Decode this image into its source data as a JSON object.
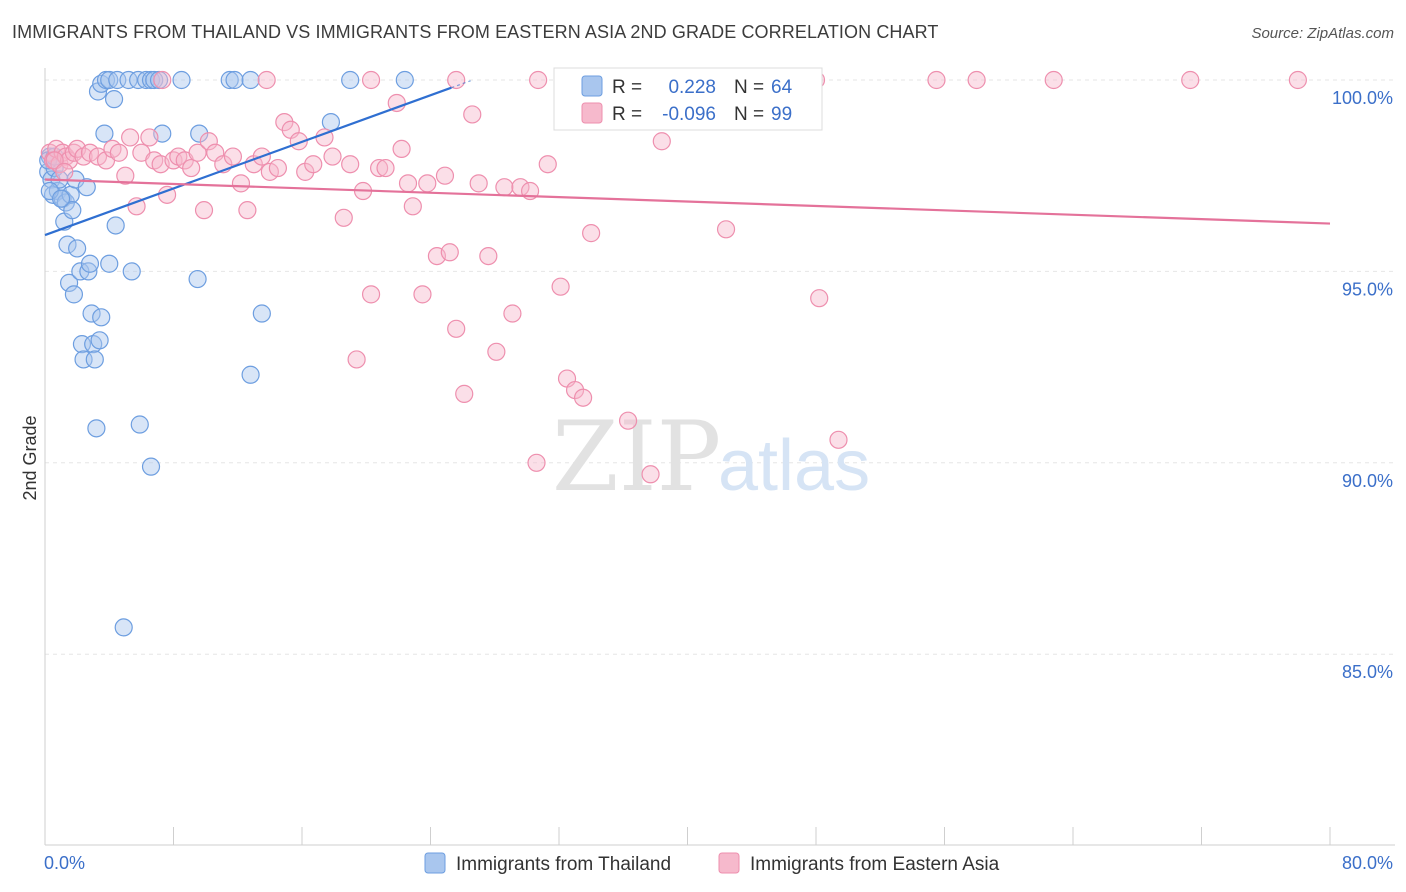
{
  "title": "IMMIGRANTS FROM THAILAND VS IMMIGRANTS FROM EASTERN ASIA 2ND GRADE CORRELATION CHART",
  "source": "Source: ZipAtlas.com",
  "watermark": {
    "zip": "ZIP",
    "atlas": "atlas"
  },
  "colors": {
    "blue_fill": "#a9c6ee",
    "blue_stroke": "#6d9ee0",
    "blue_line": "#2f6fd1",
    "pink_fill": "#f6b9cc",
    "pink_stroke": "#ee8fae",
    "pink_line": "#e4729a",
    "grid": "#e6e6e6",
    "axis_text": "#3b6fc9"
  },
  "legend": {
    "rows": [
      {
        "r_label": "R =",
        "r_value": "0.228",
        "n_label": "N =",
        "n_value": "64"
      },
      {
        "r_label": "R =",
        "r_value": "-0.096",
        "n_label": "N =",
        "n_value": "99"
      }
    ]
  },
  "chart_data": {
    "type": "scatter",
    "title": "IMMIGRANTS FROM THAILAND VS IMMIGRANTS FROM EASTERN ASIA 2ND GRADE CORRELATION CHART",
    "xlabel": "",
    "ylabel": "2nd Grade",
    "xlim": [
      0,
      80
    ],
    "ylim": [
      80.5,
      101
    ],
    "x_tick_labels": [
      "0.0%",
      "80.0%"
    ],
    "y_ticks": [
      100,
      95,
      90,
      85
    ],
    "y_tick_labels": [
      "100.0%",
      "95.0%",
      "90.0%",
      "85.0%"
    ],
    "grid": true,
    "legend_position": "top-center",
    "series": [
      {
        "name": "Immigrants from Thailand",
        "color": "blue",
        "trend": {
          "x": [
            0,
            25.3
          ],
          "y": [
            95.95,
            99.8
          ]
        },
        "points": [
          [
            0.2,
            97.6
          ],
          [
            0.3,
            98.0
          ],
          [
            0.4,
            97.4
          ],
          [
            0.5,
            97.0
          ],
          [
            0.6,
            97.7
          ],
          [
            0.8,
            97.1
          ],
          [
            0.9,
            97.4
          ],
          [
            1.1,
            96.9
          ],
          [
            1.2,
            96.3
          ],
          [
            1.3,
            96.8
          ],
          [
            1.4,
            95.7
          ],
          [
            1.5,
            94.7
          ],
          [
            1.6,
            97.0
          ],
          [
            1.7,
            96.6
          ],
          [
            1.8,
            94.4
          ],
          [
            1.9,
            97.4
          ],
          [
            2.0,
            95.6
          ],
          [
            2.2,
            95.0
          ],
          [
            2.3,
            93.1
          ],
          [
            2.4,
            92.7
          ],
          [
            2.6,
            97.2
          ],
          [
            2.7,
            95.0
          ],
          [
            2.8,
            95.2
          ],
          [
            2.9,
            93.9
          ],
          [
            3.0,
            93.1
          ],
          [
            3.1,
            92.7
          ],
          [
            3.2,
            90.9
          ],
          [
            3.4,
            93.2
          ],
          [
            3.5,
            93.8
          ],
          [
            3.7,
            98.6
          ],
          [
            4.0,
            95.2
          ],
          [
            4.4,
            96.2
          ],
          [
            5.4,
            95.0
          ],
          [
            5.9,
            91.0
          ],
          [
            6.6,
            89.9
          ],
          [
            7.3,
            98.6
          ],
          [
            9.5,
            94.8
          ],
          [
            9.6,
            98.6
          ],
          [
            12.8,
            92.3
          ],
          [
            13.5,
            93.9
          ],
          [
            17.8,
            98.9
          ],
          [
            3.3,
            99.7
          ],
          [
            3.5,
            99.9
          ],
          [
            3.8,
            100.0
          ],
          [
            4.0,
            100.0
          ],
          [
            4.3,
            99.5
          ],
          [
            4.5,
            100.0
          ],
          [
            5.2,
            100.0
          ],
          [
            5.8,
            100.0
          ],
          [
            6.3,
            100.0
          ],
          [
            6.6,
            100.0
          ],
          [
            6.8,
            100.0
          ],
          [
            7.1,
            100.0
          ],
          [
            8.5,
            100.0
          ],
          [
            11.5,
            100.0
          ],
          [
            11.8,
            100.0
          ],
          [
            12.8,
            100.0
          ],
          [
            19.0,
            100.0
          ],
          [
            22.4,
            100.0
          ],
          [
            4.9,
            85.7
          ],
          [
            0.2,
            97.9
          ],
          [
            0.3,
            97.1
          ],
          [
            1.0,
            96.9
          ],
          [
            0.6,
            98.0
          ]
        ]
      },
      {
        "name": "Immigrants from Eastern Asia",
        "color": "pink",
        "trend": {
          "x": [
            0,
            80
          ],
          "y": [
            97.4,
            96.25
          ]
        },
        "points": [
          [
            0.3,
            98.1
          ],
          [
            0.5,
            97.9
          ],
          [
            0.7,
            98.2
          ],
          [
            0.9,
            97.8
          ],
          [
            1.1,
            98.1
          ],
          [
            1.3,
            98.0
          ],
          [
            1.5,
            97.9
          ],
          [
            1.8,
            98.1
          ],
          [
            2.0,
            98.2
          ],
          [
            2.4,
            98.0
          ],
          [
            2.8,
            98.1
          ],
          [
            3.3,
            98.0
          ],
          [
            3.8,
            97.9
          ],
          [
            4.2,
            98.2
          ],
          [
            4.6,
            98.1
          ],
          [
            5.0,
            97.5
          ],
          [
            5.3,
            98.5
          ],
          [
            5.7,
            96.7
          ],
          [
            6.0,
            98.1
          ],
          [
            6.5,
            98.5
          ],
          [
            6.8,
            97.9
          ],
          [
            7.2,
            97.8
          ],
          [
            7.6,
            97.0
          ],
          [
            8.0,
            97.9
          ],
          [
            8.3,
            98.0
          ],
          [
            8.7,
            97.9
          ],
          [
            9.1,
            97.7
          ],
          [
            9.5,
            98.1
          ],
          [
            9.9,
            96.6
          ],
          [
            10.2,
            98.4
          ],
          [
            10.6,
            98.1
          ],
          [
            11.1,
            97.8
          ],
          [
            11.7,
            98.0
          ],
          [
            12.2,
            97.3
          ],
          [
            12.6,
            96.6
          ],
          [
            13.0,
            97.8
          ],
          [
            13.5,
            98.0
          ],
          [
            14.0,
            97.6
          ],
          [
            14.5,
            97.7
          ],
          [
            14.9,
            98.9
          ],
          [
            15.3,
            98.7
          ],
          [
            15.8,
            98.4
          ],
          [
            16.2,
            97.6
          ],
          [
            16.7,
            97.8
          ],
          [
            17.4,
            98.5
          ],
          [
            17.9,
            98.0
          ],
          [
            18.6,
            96.4
          ],
          [
            19.0,
            97.8
          ],
          [
            19.4,
            92.7
          ],
          [
            19.8,
            97.1
          ],
          [
            20.3,
            94.4
          ],
          [
            20.8,
            97.7
          ],
          [
            21.2,
            97.7
          ],
          [
            21.9,
            99.4
          ],
          [
            22.2,
            98.2
          ],
          [
            22.6,
            97.3
          ],
          [
            22.9,
            96.7
          ],
          [
            23.5,
            94.4
          ],
          [
            23.8,
            97.3
          ],
          [
            24.4,
            95.4
          ],
          [
            24.9,
            97.5
          ],
          [
            25.2,
            95.5
          ],
          [
            25.6,
            93.5
          ],
          [
            26.1,
            91.8
          ],
          [
            26.6,
            99.1
          ],
          [
            27.0,
            97.3
          ],
          [
            27.6,
            95.4
          ],
          [
            28.1,
            92.9
          ],
          [
            28.6,
            97.2
          ],
          [
            29.1,
            93.9
          ],
          [
            29.6,
            97.2
          ],
          [
            30.2,
            97.1
          ],
          [
            30.6,
            90.0
          ],
          [
            31.3,
            97.8
          ],
          [
            32.1,
            94.6
          ],
          [
            32.5,
            92.2
          ],
          [
            33.0,
            91.9
          ],
          [
            33.5,
            91.7
          ],
          [
            34.0,
            96.0
          ],
          [
            36.3,
            91.1
          ],
          [
            37.7,
            89.7
          ],
          [
            38.4,
            98.4
          ],
          [
            42.4,
            96.1
          ],
          [
            48.2,
            94.3
          ],
          [
            49.4,
            90.6
          ],
          [
            20.3,
            100.0
          ],
          [
            37.7,
            100.0
          ],
          [
            48.0,
            100.0
          ],
          [
            55.5,
            100.0
          ],
          [
            62.8,
            100.0
          ],
          [
            71.3,
            100.0
          ],
          [
            78.0,
            100.0
          ],
          [
            30.7,
            100.0
          ],
          [
            25.6,
            100.0
          ],
          [
            13.8,
            100.0
          ],
          [
            7.3,
            100.0
          ],
          [
            58.0,
            100.0
          ],
          [
            0.6,
            97.9
          ],
          [
            1.2,
            97.6
          ]
        ]
      }
    ]
  },
  "bottom_legend": [
    {
      "label": "Immigrants from Thailand"
    },
    {
      "label": "Immigrants from Eastern Asia"
    }
  ]
}
